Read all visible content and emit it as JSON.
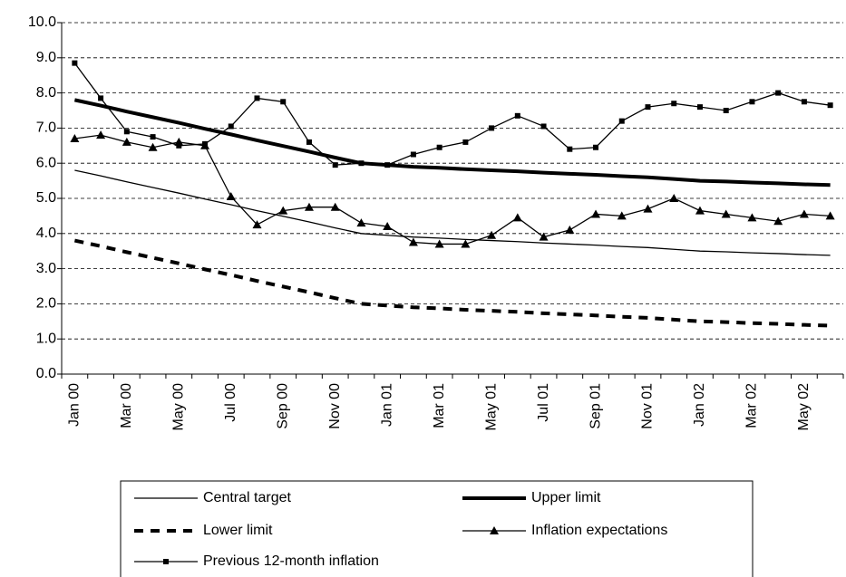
{
  "chart_data": {
    "type": "line",
    "categories": [
      "Jan 00",
      null,
      "Mar 00",
      null,
      "May 00",
      null,
      "Jul 00",
      null,
      "Sep 00",
      null,
      "Nov 00",
      null,
      "Jan 01",
      null,
      "Mar 01",
      null,
      "May 01",
      null,
      "Jul 01",
      null,
      "Sep 01",
      null,
      "Nov 01",
      null,
      "Jan 02",
      null,
      "Mar 02",
      null,
      "May 02",
      null
    ],
    "ylim": [
      0,
      10
    ],
    "yticks": [
      {
        "value": 0,
        "label": "0.0"
      },
      {
        "value": 1,
        "label": "1.0"
      },
      {
        "value": 2,
        "label": "2.0"
      },
      {
        "value": 3,
        "label": "3.0"
      },
      {
        "value": 4,
        "label": "4.0"
      },
      {
        "value": 5,
        "label": "5.0"
      },
      {
        "value": 6,
        "label": "6.0"
      },
      {
        "value": 7,
        "label": "7.0"
      },
      {
        "value": 8,
        "label": "8.0"
      },
      {
        "value": 9,
        "label": "9.0"
      },
      {
        "value": 10,
        "label": "10.0"
      }
    ],
    "grid": true,
    "series": [
      {
        "name": "Central target",
        "color": "#000000",
        "line_width": 1.3,
        "dash": "solid",
        "marker": "none",
        "values": [
          5.8,
          5.64,
          5.47,
          5.31,
          5.15,
          4.98,
          4.82,
          4.65,
          4.49,
          4.33,
          4.16,
          4.0,
          3.95,
          3.9,
          3.87,
          3.83,
          3.8,
          3.77,
          3.73,
          3.7,
          3.67,
          3.63,
          3.6,
          3.55,
          3.5,
          3.48,
          3.45,
          3.43,
          3.4,
          3.38
        ]
      },
      {
        "name": "Upper limit",
        "color": "#000000",
        "line_width": 4,
        "dash": "solid",
        "marker": "none",
        "values": [
          7.8,
          7.64,
          7.47,
          7.31,
          7.15,
          6.98,
          6.82,
          6.65,
          6.49,
          6.33,
          6.16,
          6.0,
          5.95,
          5.9,
          5.87,
          5.83,
          5.8,
          5.77,
          5.73,
          5.7,
          5.67,
          5.63,
          5.6,
          5.55,
          5.5,
          5.48,
          5.45,
          5.43,
          5.4,
          5.38
        ]
      },
      {
        "name": "Lower limit",
        "color": "#000000",
        "line_width": 4,
        "dash": "dashed",
        "marker": "none",
        "values": [
          3.8,
          3.64,
          3.47,
          3.31,
          3.15,
          2.98,
          2.82,
          2.65,
          2.49,
          2.33,
          2.16,
          2.0,
          1.95,
          1.9,
          1.87,
          1.83,
          1.8,
          1.77,
          1.73,
          1.7,
          1.67,
          1.63,
          1.6,
          1.55,
          1.5,
          1.48,
          1.45,
          1.43,
          1.4,
          1.38
        ]
      },
      {
        "name": "Inflation expectations",
        "color": "#000000",
        "line_width": 1.3,
        "dash": "solid",
        "marker": "triangle",
        "values": [
          6.7,
          6.8,
          6.6,
          6.45,
          6.6,
          6.5,
          5.05,
          4.25,
          4.65,
          4.75,
          4.75,
          4.3,
          4.2,
          3.75,
          3.7,
          3.7,
          3.95,
          4.45,
          3.9,
          4.1,
          4.55,
          4.5,
          4.7,
          5.0,
          4.65,
          4.55,
          4.45,
          4.35,
          4.55,
          4.5
        ]
      },
      {
        "name": "Previous 12-month inflation",
        "color": "#000000",
        "line_width": 1.3,
        "dash": "solid",
        "marker": "square",
        "values": [
          8.85,
          7.85,
          6.9,
          6.75,
          6.5,
          6.55,
          7.05,
          7.85,
          7.75,
          6.6,
          5.95,
          6.0,
          5.95,
          6.25,
          6.45,
          6.6,
          7.0,
          7.35,
          7.05,
          6.4,
          6.45,
          7.2,
          7.6,
          7.7,
          7.6,
          7.5,
          7.75,
          8.0,
          7.75,
          7.65
        ]
      }
    ]
  }
}
